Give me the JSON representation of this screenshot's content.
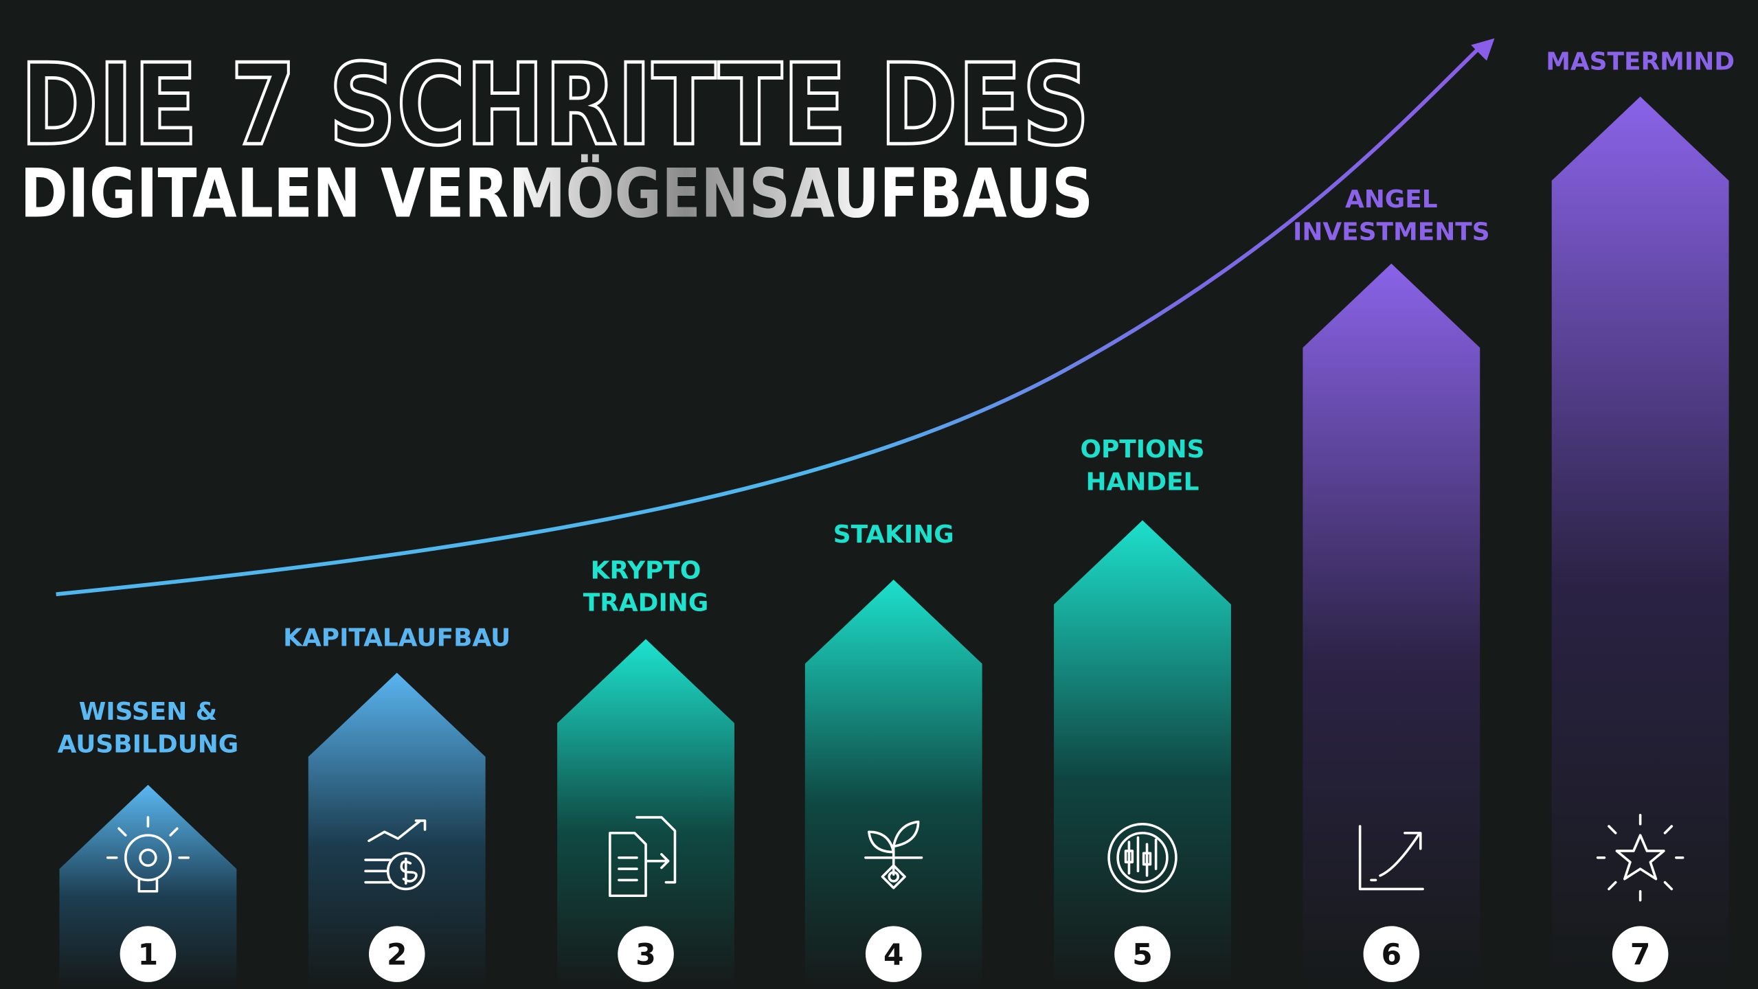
{
  "title": {
    "line1": "DIE 7 SCHRITTE DES",
    "line2": "DIGITALEN VERMÖGENSAUFBAUS"
  },
  "steps": [
    {
      "number": "1",
      "label": [
        "WISSEN &",
        "AUSBILDUNG"
      ]
    },
    {
      "number": "2",
      "label": [
        "KAPITALAUFBAU"
      ]
    },
    {
      "number": "3",
      "label": [
        "KRYPTO",
        "TRADING"
      ]
    },
    {
      "number": "4",
      "label": [
        "STAKING"
      ]
    },
    {
      "number": "5",
      "label": [
        "OPTIONS",
        "HANDEL"
      ]
    },
    {
      "number": "6",
      "label": [
        "ANGEL",
        "INVESTMENTS"
      ]
    },
    {
      "number": "7",
      "label": [
        "MASTERMIND"
      ]
    }
  ]
}
